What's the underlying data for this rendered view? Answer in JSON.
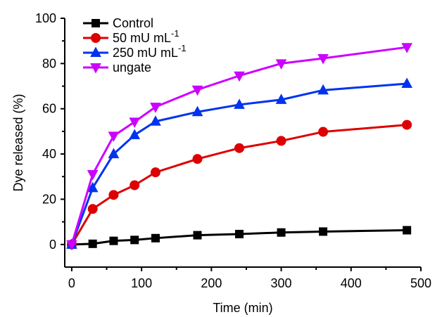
{
  "chart_data": {
    "type": "line",
    "xlabel": "Time (min)",
    "ylabel": "Dye released (%)",
    "xlim": [
      -10,
      500
    ],
    "ylim": [
      -10,
      100
    ],
    "xticks": [
      0,
      100,
      200,
      300,
      400,
      500
    ],
    "yticks": [
      0,
      20,
      40,
      60,
      80,
      100
    ],
    "x": [
      0,
      30,
      60,
      90,
      120,
      180,
      240,
      300,
      360,
      480
    ],
    "legend_position": "top-left",
    "series": [
      {
        "name": "Control",
        "name_main": "Control",
        "name_sup": "",
        "color": "#000000",
        "marker": "square",
        "values": [
          0,
          0.3,
          1.6,
          2.0,
          2.8,
          4.1,
          4.6,
          5.3,
          5.7,
          6.3
        ]
      },
      {
        "name": "50 mU mL-1",
        "name_main": "50 mU mL",
        "name_sup": "-1",
        "color": "#dd0000",
        "marker": "circle",
        "values": [
          0,
          15.7,
          21.9,
          26.2,
          31.9,
          37.8,
          42.6,
          45.8,
          49.8,
          52.9
        ]
      },
      {
        "name": "250 mU mL-1",
        "name_main": "250 mU mL",
        "name_sup": "-1",
        "color": "#0033ee",
        "marker": "triangle-up",
        "values": [
          0,
          25.0,
          40.0,
          48.4,
          54.4,
          58.6,
          61.8,
          64.0,
          68.2,
          71.1
        ]
      },
      {
        "name": "ungate",
        "name_main": "ungate",
        "name_sup": "",
        "color": "#cc00ff",
        "marker": "triangle-down",
        "values": [
          0,
          31.0,
          48.0,
          54.2,
          60.8,
          68.4,
          74.6,
          80.0,
          82.3,
          87.2
        ]
      }
    ]
  }
}
